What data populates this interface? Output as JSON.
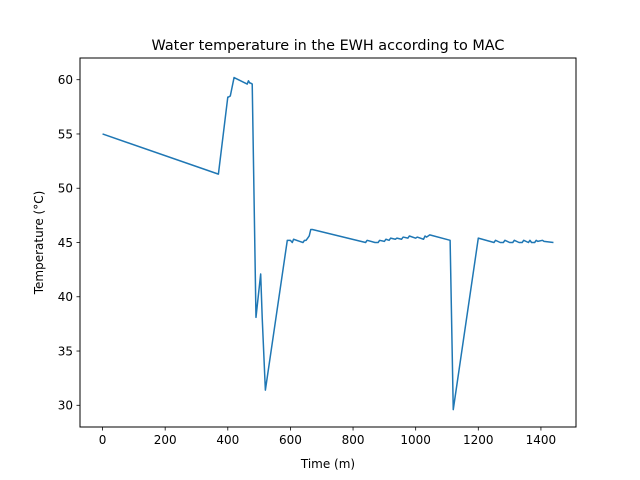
{
  "chart_data": {
    "type": "line",
    "title": "Water temperature in the EWH according to MAC",
    "xlabel": "Time (m)",
    "ylabel": "Temperature (°C)",
    "xlim": [
      -72,
      1512
    ],
    "ylim": [
      28.0,
      62.0
    ],
    "xticks": [
      0,
      200,
      400,
      600,
      800,
      1000,
      1200,
      1400
    ],
    "yticks": [
      30,
      35,
      40,
      45,
      50,
      55,
      60
    ],
    "grid": false,
    "series": [
      {
        "color": "#1f77b4",
        "x": [
          0,
          370,
          400,
          402,
          408,
          420,
          462,
          466,
          470,
          472,
          478,
          490,
          505,
          510,
          520,
          590,
          600,
          606,
          610,
          630,
          640,
          645,
          650,
          655,
          660,
          665,
          670,
          840,
          845,
          870,
          880,
          885,
          900,
          905,
          915,
          920,
          935,
          940,
          955,
          960,
          975,
          980,
          1000,
          1005,
          1025,
          1030,
          1035,
          1045,
          1110,
          1120,
          1200,
          1250,
          1255,
          1270,
          1280,
          1285,
          1300,
          1310,
          1315,
          1330,
          1340,
          1345,
          1360,
          1365,
          1370,
          1380,
          1385,
          1390,
          1405,
          1410,
          1440
        ],
        "y": [
          55.0,
          51.3,
          58.4,
          58.4,
          58.5,
          60.2,
          59.6,
          59.9,
          59.7,
          59.7,
          59.6,
          38.1,
          42.1,
          38.0,
          31.4,
          45.2,
          45.2,
          45.0,
          45.3,
          45.1,
          45.0,
          45.2,
          45.2,
          45.4,
          45.6,
          46.2,
          46.2,
          45.0,
          45.2,
          45.0,
          45.0,
          45.2,
          45.1,
          45.3,
          45.2,
          45.4,
          45.3,
          45.4,
          45.3,
          45.5,
          45.4,
          45.6,
          45.4,
          45.5,
          45.3,
          45.6,
          45.5,
          45.7,
          45.2,
          29.6,
          45.4,
          45.0,
          45.2,
          45.0,
          45.0,
          45.2,
          45.0,
          45.0,
          45.2,
          45.0,
          45.0,
          45.2,
          45.0,
          45.2,
          45.0,
          45.0,
          45.2,
          45.1,
          45.2,
          45.1,
          45.0
        ]
      }
    ]
  }
}
